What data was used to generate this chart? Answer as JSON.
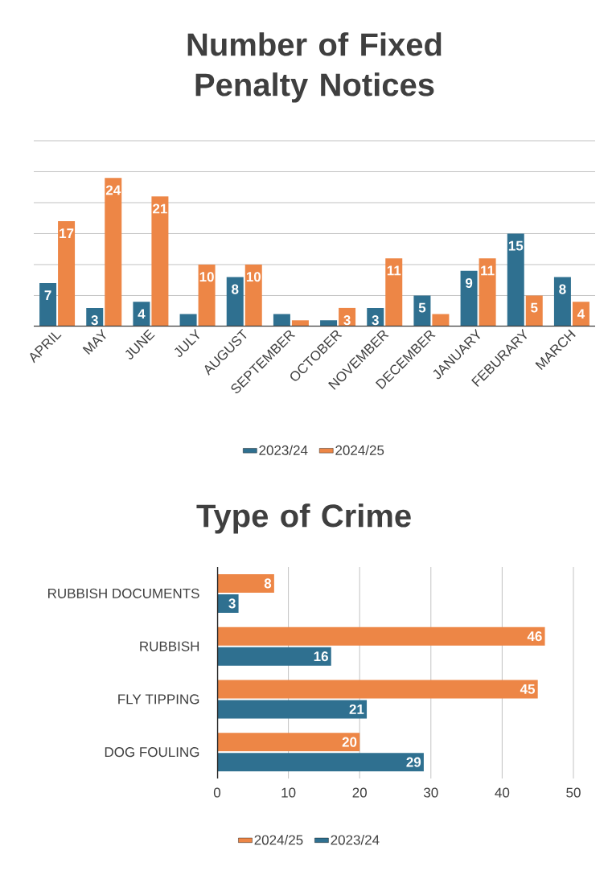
{
  "chart_data": [
    {
      "type": "bar",
      "title": "Number of Fixed Penalty Notices",
      "categories": [
        "APRIL",
        "MAY",
        "JUNE",
        "JULY",
        "AUGUST",
        "SEPTEMBER",
        "OCTOBER",
        "NOVEMBER",
        "DECEMBER",
        "JANUARY",
        "FEBURARY",
        "MARCH"
      ],
      "series": [
        {
          "name": "2023/24",
          "color": "#2f7090",
          "values": [
            7,
            3,
            4,
            2,
            8,
            2,
            1,
            3,
            5,
            9,
            15,
            8
          ],
          "value_labels": [
            "7",
            "3",
            "4",
            null,
            "8",
            null,
            null,
            "3",
            "5",
            "9",
            "15",
            "8"
          ]
        },
        {
          "name": "2024/25",
          "color": "#ed8646",
          "values": [
            17,
            24,
            21,
            10,
            10,
            1,
            3,
            11,
            2,
            11,
            5,
            4
          ],
          "value_labels": [
            "17",
            "24",
            "21",
            "10",
            "10",
            null,
            "3",
            "11",
            null,
            "11",
            "5",
            "4"
          ]
        }
      ],
      "ylim": [
        0,
        30
      ],
      "yticks": [
        {
          "value": 0,
          "label": null
        },
        {
          "value": 5,
          "label": null
        },
        {
          "value": 10,
          "label": null
        },
        {
          "value": 15,
          "label": null
        },
        {
          "value": 20,
          "label": null
        },
        {
          "value": 25,
          "label": null
        },
        {
          "value": 30,
          "label": null
        }
      ],
      "tick_labels": "x",
      "grid": "y",
      "legend": "bottom"
    },
    {
      "type": "bar",
      "orientation": "horizontal",
      "title": "Type of Crime",
      "categories": [
        "RUBBISH DOCUMENTS",
        "RUBBISH",
        "FLY TIPPING",
        "DOG FOULING"
      ],
      "series": [
        {
          "name": "2024/25",
          "color": "#ed8646",
          "values": [
            8,
            46,
            45,
            20
          ]
        },
        {
          "name": "2023/24",
          "color": "#2f7090",
          "values": [
            3,
            16,
            21,
            29
          ]
        }
      ],
      "xlim": [
        0,
        50
      ],
      "xticks": [
        0,
        10,
        20,
        30,
        40,
        50
      ],
      "grid": "x",
      "legend": "bottom",
      "data_labels": true
    }
  ]
}
